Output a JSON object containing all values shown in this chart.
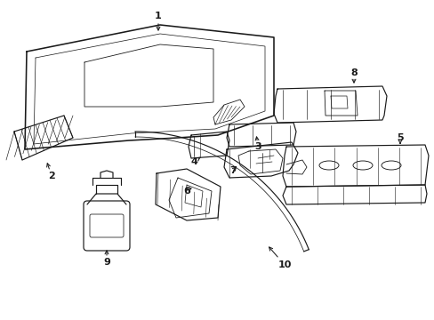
{
  "bg": "#ffffff",
  "lc": "#1a1a1a",
  "lw": 0.85,
  "figsize": [
    4.89,
    3.6
  ],
  "dpi": 100,
  "xlim": [
    0.0,
    489.0
  ],
  "ylim": [
    0.0,
    360.0
  ]
}
